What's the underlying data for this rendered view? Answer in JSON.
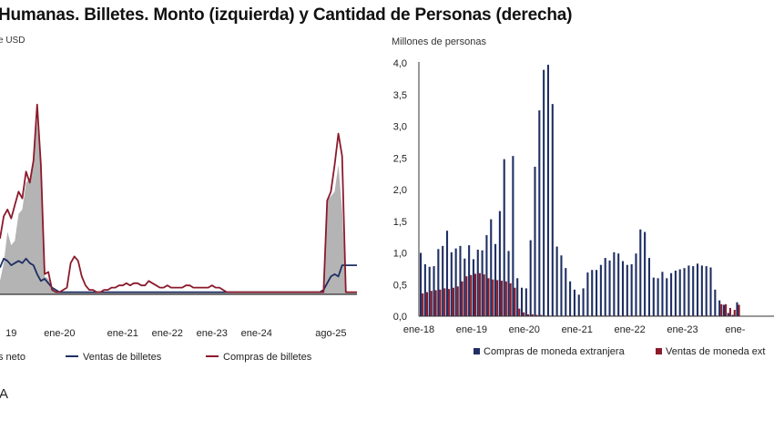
{
  "title": "Humanas. Billetes. Monto (izquierda) y Cantidad de Personas (derecha)",
  "footnote": "A",
  "chart_data": [
    {
      "type": "area",
      "ylabel": "e USD",
      "x_ticks": [
        "19",
        "ene-20",
        "ene-21",
        "ene-22",
        "ene-23",
        "ene-24",
        "ago-25"
      ],
      "x_index": [
        0,
        1,
        2,
        3,
        4,
        5,
        6,
        7,
        8,
        9,
        10,
        11,
        12,
        13,
        14,
        15,
        16,
        17,
        18,
        19,
        20,
        21,
        22,
        23,
        24,
        25,
        26,
        27,
        28,
        29,
        30,
        31,
        32,
        33,
        34,
        35,
        36,
        37,
        38,
        39,
        40,
        41,
        42,
        43,
        44,
        45,
        46,
        47,
        48,
        49,
        50,
        51,
        52,
        53,
        54,
        55,
        56,
        57,
        58,
        59,
        60,
        61,
        62,
        63,
        64,
        65,
        66,
        67,
        68,
        69,
        70,
        71,
        72,
        73,
        74,
        75,
        76,
        77,
        78,
        79,
        80,
        81,
        82,
        83,
        84,
        85,
        86,
        87,
        88,
        89,
        90,
        91,
        92,
        93,
        94,
        95,
        96
      ],
      "tick_index": [
        3,
        16,
        33,
        45,
        57,
        69,
        89
      ],
      "ylim": [
        0,
        100
      ],
      "series": [
        {
          "name": "s neto",
          "kind": "area",
          "color": "#b4b4b4",
          "values": [
            6,
            14,
            28,
            22,
            24,
            36,
            38,
            50,
            52,
            60,
            78,
            55,
            8,
            7,
            3,
            2,
            1,
            1,
            1,
            1,
            1,
            1,
            1,
            1,
            1,
            1,
            1,
            1,
            1,
            1,
            1,
            1,
            1,
            1,
            1,
            1,
            1,
            1,
            1,
            1,
            1,
            1,
            1,
            1,
            1,
            1,
            1,
            1,
            1,
            1,
            1,
            1,
            1,
            1,
            1,
            1,
            1,
            1,
            1,
            1,
            1,
            1,
            1,
            1,
            1,
            1,
            1,
            1,
            1,
            1,
            1,
            1,
            1,
            1,
            1,
            1,
            1,
            1,
            1,
            1,
            1,
            1,
            1,
            1,
            1,
            1,
            1,
            1,
            42,
            44,
            46,
            58,
            38,
            1,
            1,
            1,
            1
          ]
        },
        {
          "name": "Ventas de billetes",
          "kind": "line",
          "color": "#1f2f63",
          "values": [
            12,
            16,
            15,
            13,
            14,
            15,
            14,
            16,
            14,
            13,
            9,
            6,
            7,
            5,
            3,
            2,
            1,
            1,
            1,
            1,
            1,
            1,
            1,
            1,
            1,
            1,
            1,
            1,
            1,
            1,
            1,
            1,
            1,
            1,
            1,
            1,
            1,
            1,
            1,
            1,
            1,
            1,
            1,
            1,
            1,
            1,
            1,
            1,
            1,
            1,
            1,
            1,
            1,
            1,
            1,
            1,
            1,
            1,
            1,
            1,
            1,
            1,
            1,
            1,
            1,
            1,
            1,
            1,
            1,
            1,
            1,
            1,
            1,
            1,
            1,
            1,
            1,
            1,
            1,
            1,
            1,
            1,
            1,
            1,
            1,
            1,
            1,
            2,
            5,
            8,
            9,
            8,
            13,
            13,
            13,
            13,
            13
          ]
        },
        {
          "name": "Compras de billetes",
          "kind": "line",
          "color": "#8b1a2c",
          "values": [
            25,
            35,
            38,
            34,
            40,
            46,
            43,
            55,
            50,
            60,
            85,
            58,
            9,
            10,
            2,
            1,
            1,
            2,
            3,
            14,
            17,
            15,
            8,
            4,
            2,
            2,
            1,
            1,
            2,
            2,
            3,
            3,
            4,
            4,
            5,
            4,
            5,
            5,
            4,
            4,
            6,
            5,
            4,
            3,
            3,
            4,
            3,
            3,
            3,
            3,
            4,
            4,
            3,
            3,
            3,
            3,
            3,
            4,
            3,
            3,
            2,
            1,
            1,
            1,
            1,
            1,
            1,
            1,
            1,
            1,
            1,
            1,
            1,
            1,
            1,
            1,
            1,
            1,
            1,
            1,
            1,
            1,
            1,
            1,
            1,
            1,
            1,
            1,
            42,
            46,
            58,
            72,
            62,
            1,
            1,
            1,
            1
          ]
        }
      ],
      "legend": [
        "s neto",
        "Ventas de billetes",
        "Compras de billetes"
      ]
    },
    {
      "type": "bar",
      "ylabel": "Millones de personas",
      "ylim": [
        0,
        4.0
      ],
      "y_ticks": [
        "4,0",
        "3,5",
        "3,0",
        "2,5",
        "2,0",
        "1,5",
        "1,0",
        "0,5",
        "0,0"
      ],
      "x_ticks": [
        "ene-18",
        "ene-19",
        "ene-20",
        "ene-21",
        "ene-22",
        "ene-23",
        "ene-"
      ],
      "tick_index": [
        0,
        12,
        24,
        36,
        48,
        60,
        72
      ],
      "series": [
        {
          "name": "Compras de moneda extranjera",
          "color": "#1f2f63",
          "values": [
            1.0,
            0.82,
            0.78,
            0.79,
            1.06,
            1.11,
            1.35,
            1.01,
            1.07,
            1.11,
            0.91,
            1.12,
            0.9,
            1.05,
            1.04,
            1.28,
            1.53,
            1.14,
            1.66,
            2.48,
            1.03,
            2.53,
            0.6,
            0.45,
            0.44,
            1.2,
            2.36,
            3.25,
            3.89,
            3.97,
            3.35,
            1.1,
            0.96,
            0.76,
            0.55,
            0.42,
            0.34,
            0.44,
            0.69,
            0.73,
            0.73,
            0.81,
            0.92,
            0.88,
            1.01,
            0.99,
            0.87,
            0.81,
            0.82,
            0.99,
            1.37,
            1.33,
            0.92,
            0.61,
            0.6,
            0.7,
            0.6,
            0.68,
            0.72,
            0.74,
            0.76,
            0.8,
            0.79,
            0.83,
            0.8,
            0.79,
            0.77,
            0.42,
            0.25,
            0.18,
            0.05,
            0.02,
            0.22
          ]
        },
        {
          "name": "Ventas de moneda extranjera",
          "color": "#8b1a2c",
          "values": [
            0.36,
            0.38,
            0.4,
            0.41,
            0.42,
            0.44,
            0.43,
            0.45,
            0.47,
            0.55,
            0.63,
            0.65,
            0.67,
            0.68,
            0.66,
            0.6,
            0.58,
            0.57,
            0.56,
            0.55,
            0.52,
            0.45,
            0.12,
            0.06,
            0.03,
            0.03,
            0.02,
            0.02,
            0.01,
            0.01,
            0.01,
            0.01,
            0.01,
            0.01,
            0.01,
            0.01,
            0.01,
            0.01,
            0.01,
            0.01,
            0.01,
            0.01,
            0.01,
            0.01,
            0.01,
            0.01,
            0.01,
            0.01,
            0.01,
            0.01,
            0.01,
            0.01,
            0.01,
            0.01,
            0.01,
            0.01,
            0.01,
            0.01,
            0.01,
            0.01,
            0.01,
            0.01,
            0.01,
            0.01,
            0.01,
            0.01,
            0.01,
            0.01,
            0.19,
            0.19,
            0.13,
            0.1,
            0.18
          ]
        }
      ],
      "legend": [
        "Compras de moneda extranjera",
        "Ventas de moneda ext"
      ]
    }
  ]
}
